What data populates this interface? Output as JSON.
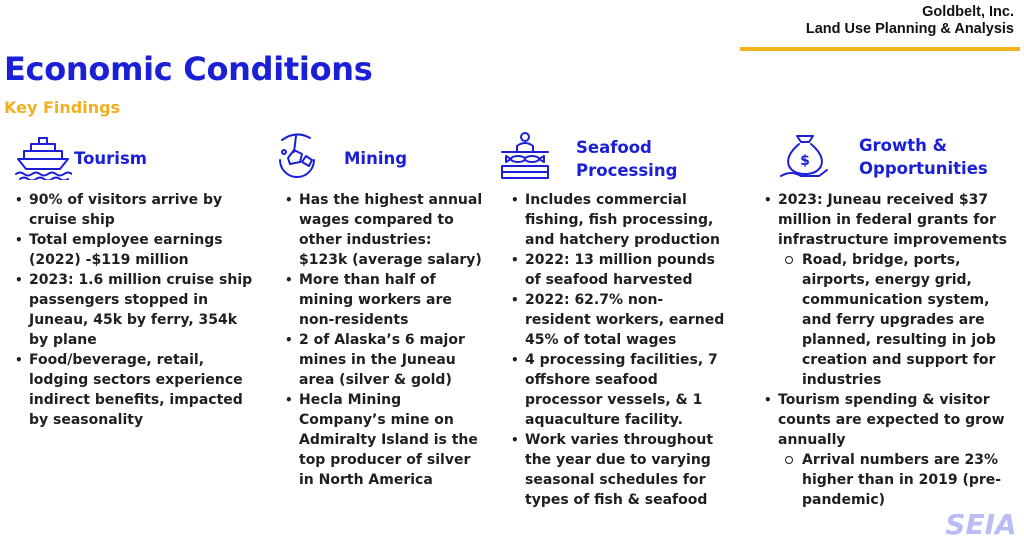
{
  "header": {
    "org_name": "Goldbelt, Inc.",
    "org_dept": "Land Use Planning & Analysis",
    "title": "Economic Conditions",
    "subtitle": "Key Findings"
  },
  "logo": {
    "text": "SEIA",
    "color": "#b8bef5"
  },
  "colors": {
    "title": "#1b20d6",
    "accent": "#f2b21b",
    "text": "#1f1f1f"
  },
  "columns": [
    {
      "title": "Tourism",
      "icon": "cruise-ship-icon",
      "items": [
        {
          "text": "90% of visitors arrive by cruise ship"
        },
        {
          "text": "Total employee earnings (2022) -$119 million"
        },
        {
          "text": "2023: 1.6 million cruise ship passengers stopped in Juneau, 45k by ferry, 354k by plane"
        },
        {
          "text": "Food/beverage, retail, lodging sectors experience indirect benefits, impacted by seasonality"
        }
      ]
    },
    {
      "title": "Mining",
      "icon": "mining-icon",
      "items": [
        {
          "text": "Has the highest annual wages compared to other industries: $123k (average salary)"
        },
        {
          "text": "More than half of mining workers are non-residents"
        },
        {
          "text": "2 of Alaska’s 6 major mines in the Juneau area (silver & gold)"
        },
        {
          "text": "Hecla Mining Company’s mine on Admiralty Island is the top producer of silver in North America"
        }
      ]
    },
    {
      "title_line1": "Seafood",
      "title_line2": "Processing",
      "icon": "seafood-processing-icon",
      "items": [
        {
          "text": "Includes commercial fishing, fish processing, and hatchery production"
        },
        {
          "text": "2022: 13 million pounds of seafood harvested"
        },
        {
          "text": "2022: 62.7% non-resident workers, earned 45% of total wages"
        },
        {
          "text": "4 processing facilities, 7 offshore seafood processor vessels, & 1 aquaculture facility."
        },
        {
          "text": "Work varies throughout the year due to varying seasonal schedules for types of fish & seafood"
        }
      ]
    },
    {
      "title_line1": "Growth &",
      "title_line2": "Opportunities",
      "icon": "money-hand-icon",
      "items": [
        {
          "text": "2023: Juneau received $37 million in federal grants for infrastructure improvements",
          "sub": "Road, bridge, ports, airports, energy grid, communication system, and ferry upgrades are planned, resulting in job creation and support for industries"
        },
        {
          "text": "Tourism spending & visitor counts are expected to grow annually",
          "sub": "Arrival numbers are 23% higher than in 2019 (pre-pandemic)"
        }
      ]
    }
  ]
}
